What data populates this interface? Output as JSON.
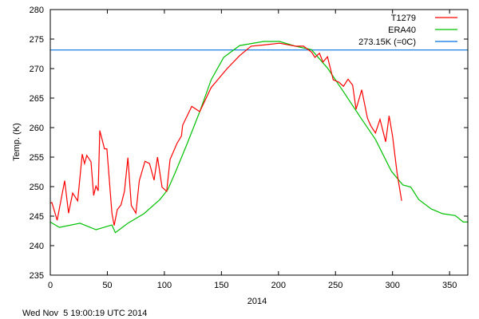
{
  "chart_data": {
    "type": "line",
    "title": "",
    "xlabel": "2014",
    "ylabel": "Temp. (K)",
    "xlim": [
      0,
      366
    ],
    "ylim": [
      235,
      280
    ],
    "xticks": [
      0,
      50,
      100,
      150,
      200,
      250,
      300,
      350
    ],
    "yticks": [
      235,
      240,
      245,
      250,
      255,
      260,
      265,
      270,
      275,
      280
    ],
    "grid": false,
    "legend_position": "top-right",
    "footer": "Wed Nov  5 19:00:19 UTC 2014",
    "series": [
      {
        "name": "T1279",
        "color": "#ff0000",
        "x": [
          0,
          1.4,
          6,
          12.6,
          16,
          19.6,
          24,
          28,
          30,
          32,
          35.7,
          38,
          40,
          42,
          43.4,
          47.5,
          49.6,
          54,
          56,
          58.7,
          62,
          65,
          68,
          71,
          75,
          78,
          83,
          87,
          91,
          94,
          98,
          102,
          105,
          111,
          115,
          116,
          124,
          131,
          141,
          155,
          166,
          176,
          187,
          201,
          215,
          222,
          229,
          232,
          236,
          239,
          243,
          248,
          253,
          257,
          261,
          265,
          268,
          273,
          278,
          281,
          285,
          289,
          294,
          297,
          300,
          304,
          308
        ],
        "y": [
          247.2,
          247.3,
          244.3,
          251.0,
          245.5,
          248.9,
          247.6,
          255.5,
          253.9,
          255.3,
          254.2,
          248.5,
          250.1,
          249.3,
          259.5,
          256.4,
          256.4,
          245.5,
          243.4,
          246.1,
          246.9,
          249.2,
          254.9,
          246.8,
          245.5,
          251.0,
          254.3,
          253.9,
          251.1,
          255.0,
          249.9,
          249.2,
          254.6,
          257.3,
          258.6,
          260.4,
          263.6,
          262.7,
          266.8,
          270.0,
          272.2,
          273.8,
          274.0,
          274.3,
          273.8,
          273.8,
          272.8,
          271.9,
          272.6,
          271.1,
          272.0,
          268.1,
          267.7,
          267.0,
          268.2,
          267.2,
          263.1,
          266.4,
          261.6,
          260.3,
          259.1,
          261.4,
          257.6,
          262.0,
          258.6,
          252.3,
          247.6
        ]
      },
      {
        "name": "ERA40",
        "color": "#00c000",
        "x": [
          0,
          8,
          26,
          40,
          54,
          57,
          68,
          82,
          96,
          103,
          110,
          120,
          131,
          141,
          152,
          166,
          187,
          201,
          215,
          229,
          243,
          257,
          271,
          285,
          299,
          309,
          316,
          323,
          334,
          344,
          355,
          362,
          366
        ],
        "y": [
          244.0,
          243.1,
          243.8,
          242.7,
          243.5,
          242.2,
          243.8,
          245.4,
          247.8,
          249.5,
          252.6,
          257.3,
          262.7,
          268.1,
          271.9,
          273.9,
          274.6,
          274.6,
          273.8,
          273.2,
          270.1,
          266.1,
          262.0,
          258.0,
          252.6,
          250.3,
          249.9,
          247.8,
          246.2,
          245.4,
          245.1,
          244.0,
          244.0
        ]
      },
      {
        "name": "273.15K (=0C)",
        "color": "#0070e0",
        "x": [
          0,
          366
        ],
        "y": [
          273.15,
          273.15
        ]
      }
    ]
  }
}
